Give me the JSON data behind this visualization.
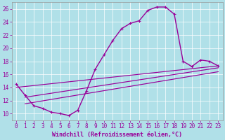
{
  "xlabel": "Windchill (Refroidissement éolien,°C)",
  "background_color": "#b0e0e8",
  "grid_color": "#ffffff",
  "line_color": "#990099",
  "xlim": [
    -0.5,
    23.5
  ],
  "ylim": [
    9,
    27
  ],
  "xticks": [
    0,
    1,
    2,
    3,
    4,
    5,
    6,
    7,
    8,
    9,
    10,
    11,
    12,
    13,
    14,
    15,
    16,
    17,
    18,
    19,
    20,
    21,
    22,
    23
  ],
  "yticks": [
    10,
    12,
    14,
    16,
    18,
    20,
    22,
    24,
    26
  ],
  "curve_x": [
    0,
    1,
    2,
    3,
    4,
    5,
    6,
    7,
    8,
    9,
    10,
    11,
    12,
    13,
    14,
    15,
    16,
    17,
    18,
    19,
    20,
    21,
    22,
    23
  ],
  "curve_y": [
    14.5,
    12.8,
    11.2,
    10.8,
    10.2,
    10.0,
    9.7,
    10.5,
    13.5,
    16.8,
    19.0,
    21.2,
    23.0,
    23.8,
    24.2,
    25.8,
    26.3,
    26.3,
    25.2,
    18.0,
    17.2,
    18.2,
    18.0,
    17.3
  ],
  "line1_x": [
    0,
    23
  ],
  "line1_y": [
    14.0,
    17.3
  ],
  "line2_x": [
    1,
    23
  ],
  "line2_y": [
    12.5,
    17.0
  ],
  "line3_x": [
    1,
    23
  ],
  "line3_y": [
    11.5,
    16.4
  ],
  "tick_fontsize": 5.5,
  "label_fontsize": 6.0,
  "line_width": 1.0,
  "marker_size": 3.5
}
